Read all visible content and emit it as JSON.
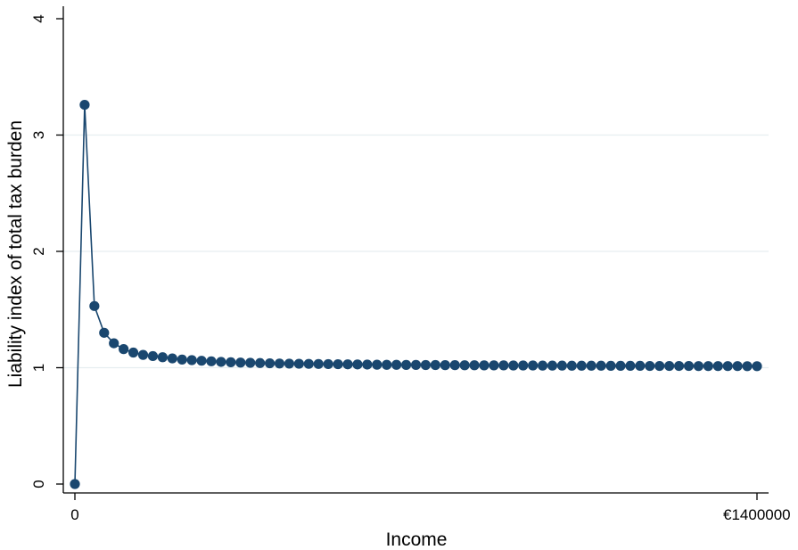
{
  "chart_data": {
    "type": "line",
    "title": "",
    "xlabel": "Income",
    "ylabel": "Liability index of total tax burden",
    "xlim": [
      0,
      1400000
    ],
    "ylim": [
      0,
      4
    ],
    "x_ticks": [
      {
        "value": 0,
        "label": "0"
      },
      {
        "value": 1400000,
        "label": "€1400000"
      }
    ],
    "y_ticks": [
      {
        "value": 0,
        "label": "0"
      },
      {
        "value": 1,
        "label": "1"
      },
      {
        "value": 2,
        "label": "2"
      },
      {
        "value": 3,
        "label": "3"
      },
      {
        "value": 4,
        "label": "4"
      }
    ],
    "grid": "horizontal",
    "series": [
      {
        "x": [
          0,
          20000,
          40000,
          60000,
          80000,
          100000,
          120000,
          140000,
          160000,
          180000,
          200000,
          220000,
          240000,
          260000,
          280000,
          300000,
          320000,
          340000,
          360000,
          380000,
          400000,
          420000,
          440000,
          460000,
          480000,
          500000,
          520000,
          540000,
          560000,
          580000,
          600000,
          620000,
          640000,
          660000,
          680000,
          700000,
          720000,
          740000,
          760000,
          780000,
          800000,
          820000,
          840000,
          860000,
          880000,
          900000,
          920000,
          940000,
          960000,
          980000,
          1000000,
          1020000,
          1040000,
          1060000,
          1080000,
          1100000,
          1120000,
          1140000,
          1160000,
          1180000,
          1200000,
          1220000,
          1240000,
          1260000,
          1280000,
          1300000,
          1320000,
          1340000,
          1360000,
          1380000,
          1400000
        ],
        "values": [
          0,
          3.26,
          1.53,
          1.3,
          1.21,
          1.16,
          1.13,
          1.11,
          1.1,
          1.09,
          1.08,
          1.07,
          1.065,
          1.06,
          1.055,
          1.05,
          1.047,
          1.044,
          1.042,
          1.04,
          1.038,
          1.036,
          1.035,
          1.034,
          1.033,
          1.032,
          1.031,
          1.03,
          1.029,
          1.028,
          1.027,
          1.026,
          1.025,
          1.025,
          1.024,
          1.024,
          1.023,
          1.023,
          1.022,
          1.022,
          1.021,
          1.021,
          1.02,
          1.02,
          1.02,
          1.019,
          1.019,
          1.019,
          1.018,
          1.018,
          1.018,
          1.017,
          1.017,
          1.017,
          1.017,
          1.016,
          1.016,
          1.016,
          1.016,
          1.015,
          1.015,
          1.015,
          1.015,
          1.015,
          1.014,
          1.014,
          1.014,
          1.014,
          1.014,
          1.013,
          1.013
        ]
      }
    ],
    "colors": {
      "series": "#1a476f",
      "grid": "#e6eef0",
      "axis": "#000000",
      "background": "#ffffff"
    }
  }
}
